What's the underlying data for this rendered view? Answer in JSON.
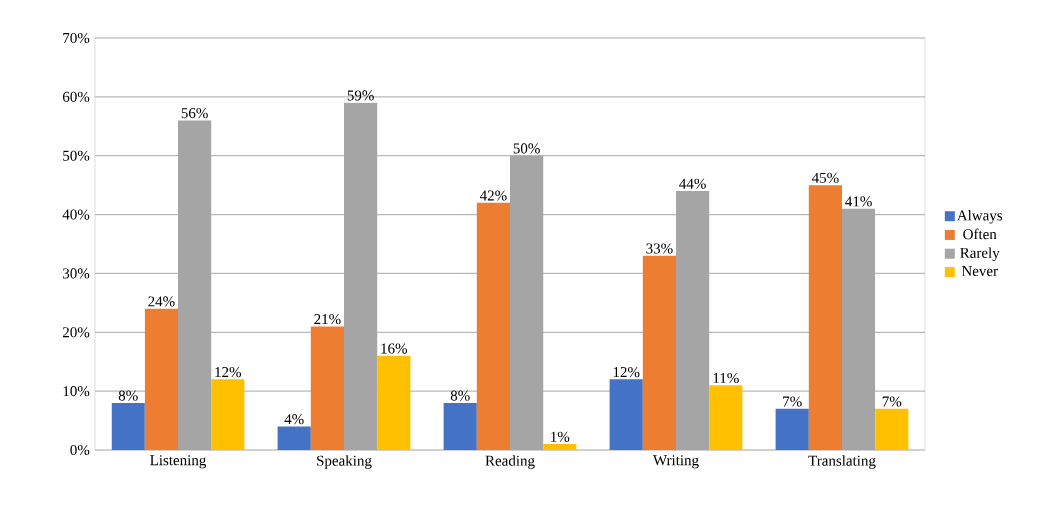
{
  "chart_data": {
    "type": "bar",
    "categories": [
      "Listening",
      "Speaking",
      "Reading",
      "Writing",
      "Translating"
    ],
    "series": [
      {
        "name": "Always",
        "color": "#4472c4",
        "values": [
          8,
          4,
          8,
          12,
          7
        ],
        "value_labels": [
          "8%",
          "4%",
          "8%",
          "12%",
          "7%"
        ]
      },
      {
        "name": "Often",
        "color": "#ed7d31",
        "values": [
          24,
          21,
          42,
          33,
          45
        ],
        "value_labels": [
          "24%",
          "21%",
          "42%",
          "33%",
          "45%"
        ]
      },
      {
        "name": "Rarely",
        "color": "#a5a5a5",
        "values": [
          56,
          59,
          50,
          44,
          41
        ],
        "value_labels": [
          "56%",
          "59%",
          "50%",
          "44%",
          "41%"
        ]
      },
      {
        "name": "Never",
        "color": "#ffc000",
        "values": [
          12,
          16,
          1,
          11,
          7
        ],
        "value_labels": [
          "12%",
          "16%",
          "1%",
          "11%",
          "7%"
        ]
      }
    ],
    "ylim": [
      0,
      70
    ],
    "yticks": [
      {
        "value": 0,
        "label": "0%"
      },
      {
        "value": 10,
        "label": "10%"
      },
      {
        "value": 20,
        "label": "20%"
      },
      {
        "value": 30,
        "label": "30%"
      },
      {
        "value": 40,
        "label": "40%"
      },
      {
        "value": 50,
        "label": "50%"
      },
      {
        "value": 60,
        "label": "60%"
      },
      {
        "value": 70,
        "label": "70%"
      }
    ],
    "grid": "y",
    "legend": "right"
  }
}
